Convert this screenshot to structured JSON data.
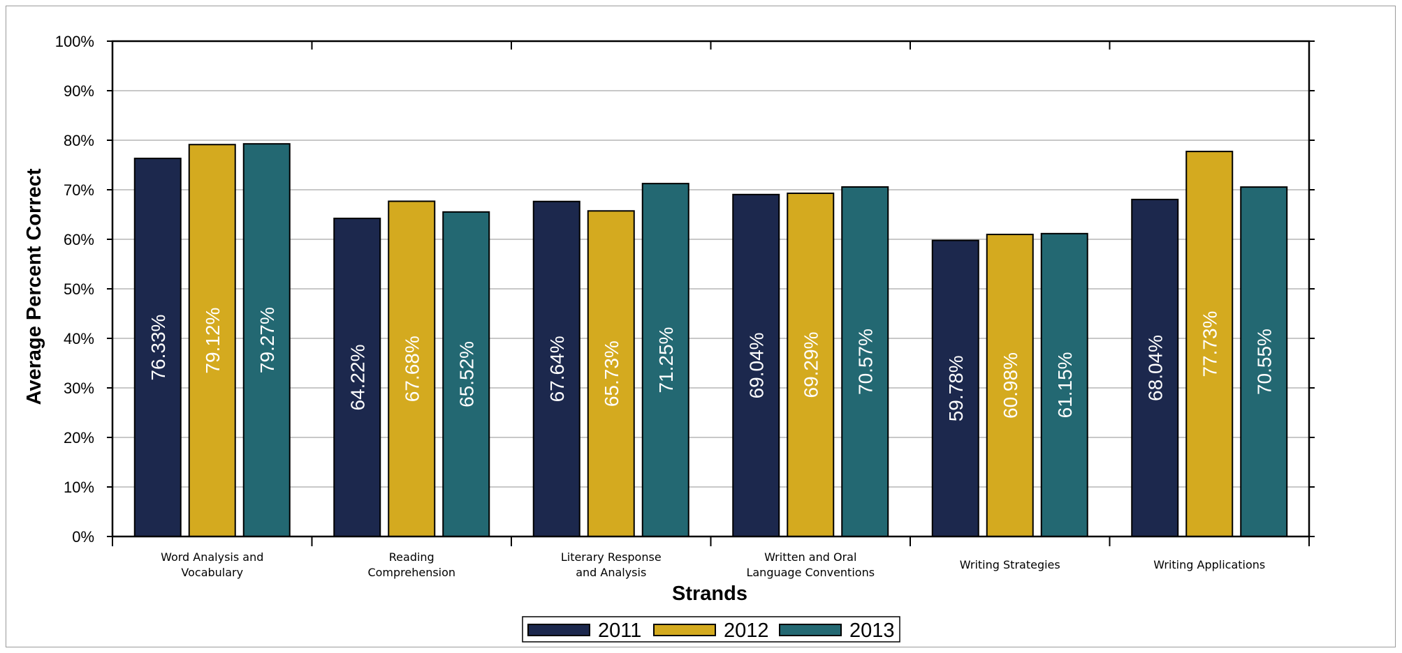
{
  "chart_data": {
    "type": "bar",
    "title": "",
    "xlabel": "Strands",
    "ylabel": "Average Percent Correct",
    "ylim": [
      0,
      100
    ],
    "yticks": [
      "0%",
      "10%",
      "20%",
      "30%",
      "40%",
      "50%",
      "60%",
      "70%",
      "80%",
      "90%",
      "100%"
    ],
    "categories": [
      [
        "Word Analysis and",
        "Vocabulary"
      ],
      [
        "Reading",
        "Comprehension"
      ],
      [
        "Literary Response",
        "and Analysis"
      ],
      [
        "Written and Oral",
        "Language Conventions"
      ],
      [
        "Writing Strategies"
      ],
      [
        "Writing Applications"
      ]
    ],
    "series": [
      {
        "name": "2011",
        "color": "#1c284d",
        "values": [
          76.33,
          64.22,
          67.64,
          69.04,
          59.78,
          68.04
        ],
        "labels": [
          "76.33%",
          "64.22%",
          "67.64%",
          "69.04%",
          "59.78%",
          "68.04%"
        ]
      },
      {
        "name": "2012",
        "color": "#d4aa1f",
        "values": [
          79.12,
          67.68,
          65.73,
          69.29,
          60.98,
          77.73
        ],
        "labels": [
          "79.12%",
          "67.68%",
          "65.73%",
          "69.29%",
          "60.98%",
          "77.73%"
        ]
      },
      {
        "name": "2013",
        "color": "#236872",
        "values": [
          79.27,
          65.52,
          71.25,
          70.57,
          61.15,
          70.55
        ],
        "labels": [
          "79.27%",
          "65.52%",
          "71.25%",
          "70.57%",
          "61.15%",
          "70.55%"
        ]
      }
    ],
    "grid": true,
    "legend_position": "bottom-center"
  }
}
